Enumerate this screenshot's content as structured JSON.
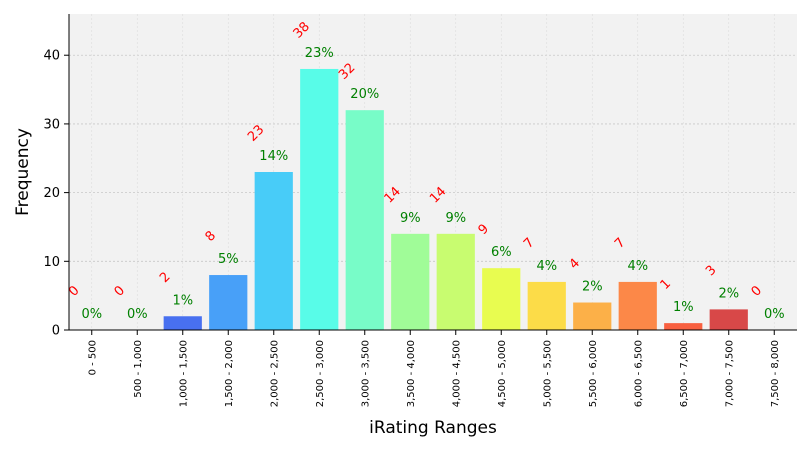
{
  "chart_data": {
    "type": "bar",
    "title": "",
    "xlabel": "iRating Ranges",
    "ylabel": "Frequency",
    "ylim": [
      0,
      46
    ],
    "yticks": [
      0,
      10,
      20,
      30,
      40
    ],
    "grid": true,
    "categories": [
      "0 - 500",
      "500 - 1,000",
      "1,000 - 1,500",
      "1,500 - 2,000",
      "2,000 - 2,500",
      "2,500 - 3,000",
      "3,000 - 3,500",
      "3,500 - 4,000",
      "4,000 - 4,500",
      "4,500 - 5,000",
      "5,000 - 5,500",
      "5,500 - 6,000",
      "6,000 - 6,500",
      "6,500 - 7,000",
      "7,000 - 7,500",
      "7,500 - 8,000"
    ],
    "values": [
      0,
      0,
      2,
      8,
      23,
      38,
      32,
      14,
      14,
      9,
      7,
      4,
      7,
      1,
      3,
      0
    ],
    "count_labels": [
      "0",
      "0",
      "2",
      "8",
      "23",
      "38",
      "32",
      "14",
      "14",
      "9",
      "7",
      "4",
      "7",
      "1",
      "3",
      "0"
    ],
    "percent_labels": [
      "0%",
      "0%",
      "1%",
      "5%",
      "14%",
      "23%",
      "20%",
      "9%",
      "9%",
      "6%",
      "4%",
      "2%",
      "4%",
      "1%",
      "2%",
      "0%"
    ],
    "bar_colors": [
      "#3030c0",
      "#3040e8",
      "#4870f0",
      "#48a0f8",
      "#48ccf8",
      "#58fce8",
      "#78fcc8",
      "#a0fc98",
      "#c8fc70",
      "#e8fc50",
      "#fcdc48",
      "#fcb048",
      "#fc8848",
      "#f86040",
      "#d84848",
      "#c03030"
    ],
    "colors": {
      "plot_background": "#f2f2f2",
      "count_label": "#ff0000",
      "percent_label": "#008000",
      "grid": "#c8c8c8"
    }
  }
}
